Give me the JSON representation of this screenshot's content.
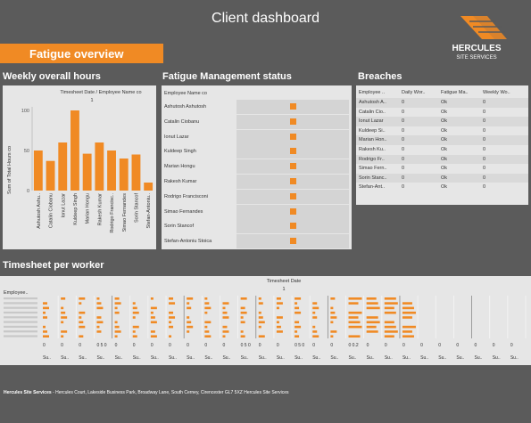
{
  "title": "Client dashboard",
  "banner": "Fatigue overview",
  "logo": {
    "line1": "HERCULES",
    "line2": "SITE SERVICES",
    "brand_color": "#f08a24"
  },
  "sections": {
    "hours": "Weekly overall hours",
    "fatigue": "Fatigue Management status",
    "breaches": "Breaches",
    "timesheet": "Timesheet per worker"
  },
  "hours_chart": {
    "header": "Timesheet Date  /  Employee Name co",
    "sub_header": "1",
    "ylabel": "Sum of Total Hours co",
    "yticks": [
      "100",
      "50",
      "0"
    ]
  },
  "chart_data": {
    "type": "bar",
    "categories": [
      "Ashutosh Ashu..",
      "Catalin Ciobanu",
      "Ionut Lazar",
      "Kuldeep Singh",
      "Marian Hongu",
      "Rakesh Kumar",
      "Rodrigo Francisc..",
      "Simao Fernandes",
      "Sorin Stancof",
      "Stefan-Antoniu.."
    ],
    "values": [
      50,
      37,
      60,
      100,
      46,
      60,
      50,
      40,
      45,
      10
    ],
    "ylim": [
      0,
      100
    ],
    "bar_color": "#f08a24"
  },
  "fatigue": {
    "header": "Employee Name co",
    "rows": [
      "Ashutosh Ashutosh",
      "Catalin Ciobanu",
      "Ionut Lazar",
      "Kuldeep Singh",
      "Marian Hongu",
      "Rakesh Kumar",
      "Rodrigo Francisconi",
      "Simao Fernandes",
      "Sorin Stancof",
      "Stefan-Antoniu Stoica"
    ],
    "status_color": "#f08a24"
  },
  "breaches": {
    "headers": [
      "Employee ..",
      "Daily Wor..",
      "Fatigue Ma..",
      "Weekly Wo.."
    ],
    "rows": [
      [
        "Ashutosh A..",
        "0",
        "Ok",
        "0"
      ],
      [
        "Catalin Cio..",
        "0",
        "Ok",
        "0"
      ],
      [
        "Ionut Lazar",
        "0",
        "Ok",
        "0"
      ],
      [
        "Kuldeep Si..",
        "0",
        "Ok",
        "0"
      ],
      [
        "Marian Hon..",
        "0",
        "Ok",
        "0"
      ],
      [
        "Rakesh Ku..",
        "0",
        "Ok",
        "0"
      ],
      [
        "Rodrigo Fr..",
        "0",
        "Ok",
        "0"
      ],
      [
        "Simao Fern..",
        "0",
        "Ok",
        "0"
      ],
      [
        "Sorin Stanc..",
        "0",
        "Ok",
        "0"
      ],
      [
        "Stefan-Ant..",
        "0",
        "Ok",
        "0"
      ]
    ]
  },
  "timesheet": {
    "header": "Timesheet Date",
    "sub_header": "1",
    "row_header": "Employee..",
    "axis_labels": [
      "0",
      "0",
      "0",
      "0 5 0",
      "0",
      "0",
      "0",
      "0",
      "0",
      "0",
      "0",
      "0 5 0",
      "0",
      "0",
      "0 5 0",
      "0",
      "0",
      "0 0.2",
      "0",
      "0",
      "0",
      "0",
      "0",
      "0",
      "0",
      "0",
      "0"
    ],
    "day_labels": [
      "Su..",
      "Su..",
      "Su..",
      "Su..",
      "Su..",
      "Su..",
      "Su..",
      "Su..",
      "Su..",
      "Su..",
      "Su..",
      "Su..",
      "Su..",
      "Su..",
      "Su..",
      "Su..",
      "Su..",
      "Su..",
      "Su..",
      "Su..",
      "Su..",
      "Su..",
      "Su..",
      "Su..",
      "Su..",
      "Su..",
      "Su.."
    ]
  },
  "footer": {
    "company": "Hercules Site Services",
    "address": " - Hercules Court, Lakeside Business Park, Broadway Lane, South Cerney, Cirencester GL7 5XZ Hercules Site Services"
  }
}
